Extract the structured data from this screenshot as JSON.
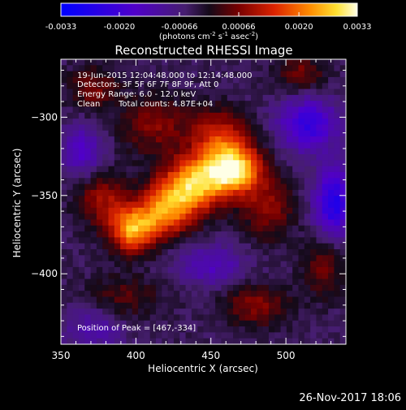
{
  "chart_data": {
    "type": "heatmap",
    "title": "Reconstructed RHESSI Image",
    "xlabel": "Heliocentric X (arcsec)",
    "ylabel": "Heliocentric Y (arcsec)",
    "xlim": [
      350,
      540
    ],
    "ylim": [
      -445,
      -263
    ],
    "x_ticks": [
      350,
      400,
      450,
      500
    ],
    "y_ticks": [
      -300,
      -350,
      -400
    ],
    "colorbar": {
      "min": -0.0033,
      "max": 0.0033,
      "tick_labels": [
        "-0.0033",
        "-0.0020",
        "-0.00066",
        "0.00066",
        "0.0020",
        "0.0033"
      ],
      "units_label": "(photons cm",
      "units_exp1": "-2",
      "units_mid": " s",
      "units_exp2": "-1",
      "units_end": " asec",
      "units_exp3": "-2",
      "units_close": ")"
    },
    "annotations": {
      "time_range": "19-Jun-2015 12:04:48.000 to 12:14:48.000",
      "detectors": "Detectors: 3F 5F 6F 7F 8F 9F, Att 0",
      "energy": "Energy Range: 6.0 - 12.0 keV",
      "clean_label": "Clean",
      "total_counts": "Total counts: 4.87E+04",
      "peak": "Position of Peak = [467,-334]"
    },
    "sources": [
      {
        "x": 465,
        "y": -333,
        "amp": 0.0033,
        "sx": 13,
        "sy": 11
      },
      {
        "x": 438,
        "y": -343,
        "amp": 0.0029,
        "sx": 15,
        "sy": 12
      },
      {
        "x": 398,
        "y": -372,
        "amp": 0.0027,
        "sx": 11,
        "sy": 10
      },
      {
        "x": 420,
        "y": -360,
        "amp": 0.0023,
        "sx": 13,
        "sy": 11
      },
      {
        "x": 455,
        "y": -312,
        "amp": 0.0016,
        "sx": 14,
        "sy": 12
      },
      {
        "x": 378,
        "y": -352,
        "amp": 0.0013,
        "sx": 12,
        "sy": 12
      },
      {
        "x": 412,
        "y": -305,
        "amp": 0.0011,
        "sx": 16,
        "sy": 13
      },
      {
        "x": 488,
        "y": -358,
        "amp": 0.0012,
        "sx": 12,
        "sy": 14
      },
      {
        "x": 372,
        "y": -282,
        "amp": 0.001,
        "sx": 12,
        "sy": 10
      },
      {
        "x": 510,
        "y": -272,
        "amp": 0.001,
        "sx": 12,
        "sy": 8
      },
      {
        "x": 392,
        "y": -415,
        "amp": 0.0008,
        "sx": 18,
        "sy": 10
      },
      {
        "x": 480,
        "y": -420,
        "amp": 0.0011,
        "sx": 16,
        "sy": 10
      },
      {
        "x": 525,
        "y": -395,
        "amp": 0.0009,
        "sx": 10,
        "sy": 14
      },
      {
        "x": 515,
        "y": -305,
        "amp": -0.0018,
        "sx": 14,
        "sy": 12
      },
      {
        "x": 532,
        "y": -355,
        "amp": -0.0022,
        "sx": 9,
        "sy": 15
      },
      {
        "x": 365,
        "y": -322,
        "amp": -0.0012,
        "sx": 10,
        "sy": 12
      },
      {
        "x": 450,
        "y": -395,
        "amp": -0.0011,
        "sx": 16,
        "sy": 9
      },
      {
        "x": 372,
        "y": -435,
        "amp": -0.0009,
        "sx": 14,
        "sy": 10
      }
    ],
    "background": -0.0004
  },
  "timestamp": "26-Nov-2017 18:06"
}
